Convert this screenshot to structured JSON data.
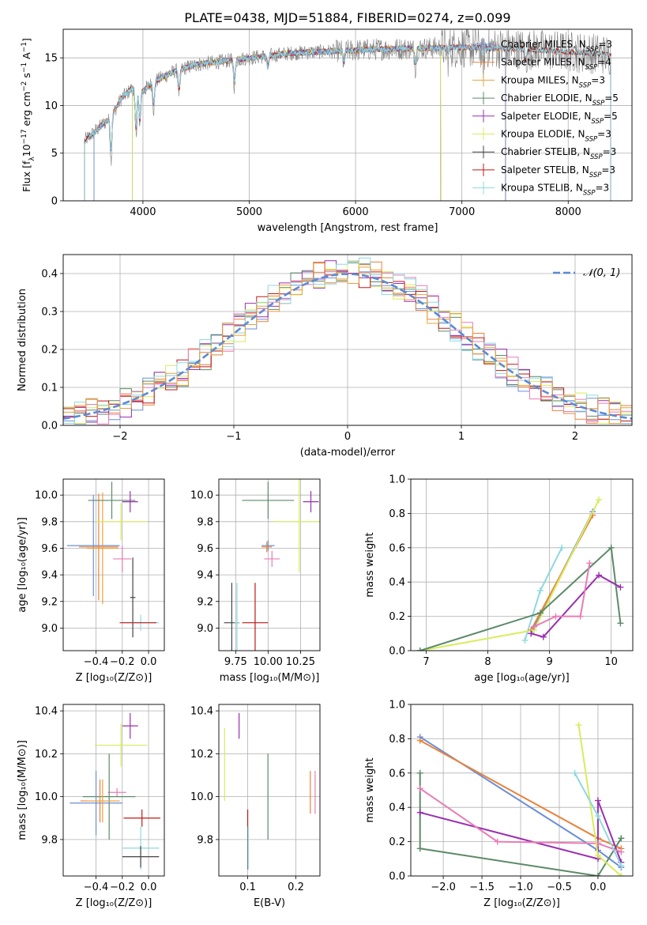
{
  "title": "PLATE=0438, MJD=51884, FIBERID=0274, z=0.099",
  "colors": {
    "miles_chabrier": "#6c8ed6",
    "miles_salpeter": "#e8823c",
    "miles_kroupa": "#e8a23c",
    "elodie_chabrier": "#5c8a68",
    "elodie_salpeter": "#9a2fb0",
    "elodie_kroupa": "#d7ec5a",
    "stelib_chabrier": "#444444",
    "stelib_salpeter": "#c01818",
    "stelib_kroupa": "#8ed8df",
    "spectrum": "#808080",
    "gauss": "#5b8ad6",
    "pink": "#e87db5"
  },
  "legend": [
    {
      "key": "miles_chabrier",
      "label": "Chabrier MILES, N",
      "sub": "SSP",
      "tail": "=3"
    },
    {
      "key": "miles_salpeter",
      "label": "Salpeter MILES, N",
      "sub": "SSP",
      "tail": "=4"
    },
    {
      "key": "miles_kroupa",
      "label": "Kroupa MILES, N",
      "sub": "SSP",
      "tail": "=3"
    },
    {
      "key": "elodie_chabrier",
      "label": "Chabrier ELODIE, N",
      "sub": "SSP",
      "tail": "=5"
    },
    {
      "key": "elodie_salpeter",
      "label": "Salpeter ELODIE, N",
      "sub": "SSP",
      "tail": "=5"
    },
    {
      "key": "elodie_kroupa",
      "label": "Kroupa ELODIE, N",
      "sub": "SSP",
      "tail": "=3"
    },
    {
      "key": "stelib_chabrier",
      "label": "Chabrier STELIB, N",
      "sub": "SSP",
      "tail": "=3"
    },
    {
      "key": "stelib_salpeter",
      "label": "Salpeter STELIB, N",
      "sub": "SSP",
      "tail": "=3"
    },
    {
      "key": "stelib_kroupa",
      "label": "Kroupa STELIB, N",
      "sub": "SSP",
      "tail": "=3"
    }
  ],
  "chart_data": [
    {
      "id": "spectrum",
      "type": "line",
      "xlabel": "wavelength [Angstrom, rest frame]",
      "ylabel": "Flux [f",
      "ylabel_parts": [
        "Flux [f",
        "λ",
        "10",
        "−17",
        " erg cm",
        "−2",
        " s",
        "−1",
        " A",
        "−1",
        "]"
      ],
      "xlim": [
        3250,
        8600
      ],
      "ylim": [
        0,
        18
      ],
      "xticks": [
        4000,
        5000,
        6000,
        7000,
        8000
      ],
      "yticks": [
        0,
        5,
        10,
        15
      ],
      "anchors": [
        [
          3450,
          6.3
        ],
        [
          3600,
          7.8
        ],
        [
          3700,
          8.8
        ],
        [
          3800,
          10.8
        ],
        [
          3900,
          11.8
        ],
        [
          4000,
          11.5
        ],
        [
          4100,
          12.5
        ],
        [
          4300,
          13.6
        ],
        [
          4500,
          14.3
        ],
        [
          4800,
          14.7
        ],
        [
          5000,
          15.0
        ],
        [
          5400,
          15.5
        ],
        [
          5800,
          15.7
        ],
        [
          6200,
          15.9
        ],
        [
          6600,
          16.0
        ],
        [
          7000,
          16.1
        ],
        [
          7400,
          16.0
        ],
        [
          7800,
          15.8
        ],
        [
          8200,
          15.5
        ],
        [
          8400,
          15.3
        ]
      ],
      "dips": [
        [
          3700,
          4.5
        ],
        [
          3935,
          5.0
        ],
        [
          3970,
          4.0
        ],
        [
          4102,
          3.0
        ],
        [
          4340,
          2.5
        ],
        [
          4861,
          3.0
        ],
        [
          5175,
          1.5
        ],
        [
          5890,
          1.5
        ],
        [
          6563,
          2.0
        ],
        [
          6867,
          1.0
        ],
        [
          7200,
          2.0
        ],
        [
          7600,
          1.5
        ]
      ]
    },
    {
      "id": "residuals",
      "type": "histogram",
      "xlabel": "(data-model)/error",
      "ylabel": "Normed distribution",
      "xlim": [
        -2.5,
        2.5
      ],
      "ylim": [
        0,
        0.45
      ],
      "xticks": [
        -2,
        -1,
        0,
        1,
        2
      ],
      "yticks": [
        0.0,
        0.1,
        0.2,
        0.3,
        0.4
      ],
      "bin_width": 0.1,
      "gauss_label": "𝒩(0, 1)"
    },
    {
      "id": "age_vs_Z",
      "type": "errorbar",
      "xlabel": "Z [log₁₀(Z/Z⊙)]",
      "ylabel": "age  [log₁₀(age/yr)]",
      "xlim": [
        -0.65,
        0.12
      ],
      "ylim": [
        8.83,
        10.12
      ],
      "xticks": [
        -0.4,
        -0.2,
        0.0
      ],
      "yticks": [
        9.0,
        9.2,
        9.4,
        9.6,
        9.8,
        10.0
      ],
      "points": [
        {
          "c": "miles_chabrier",
          "x": -0.42,
          "xe": 0.2,
          "y": 9.62,
          "ye": 0.38
        },
        {
          "c": "miles_salpeter",
          "x": -0.38,
          "xe": 0.15,
          "y": 9.61,
          "ye": 0.4
        },
        {
          "c": "miles_kroupa",
          "x": -0.35,
          "xe": 0.12,
          "y": 9.6,
          "ye": 0.42
        },
        {
          "c": "elodie_chabrier",
          "x": -0.28,
          "xe": 0.18,
          "y": 9.96,
          "ye": 0.14
        },
        {
          "c": "elodie_salpeter",
          "x": -0.14,
          "xe": 0.06,
          "y": 9.95,
          "ye": 0.08
        },
        {
          "c": "elodie_kroupa",
          "x": -0.21,
          "xe": 0.2,
          "y": 9.8,
          "ye": 0.14
        },
        {
          "c": "pink",
          "x": -0.2,
          "xe": 0.07,
          "y": 9.52,
          "ye": 0.1
        },
        {
          "c": "stelib_chabrier",
          "x": -0.12,
          "xe": 0.02,
          "y": 9.23,
          "ye": 0.3
        },
        {
          "c": "stelib_kroupa",
          "x": -0.06,
          "xe": 0.14,
          "y": 9.04,
          "ye": 0.06
        },
        {
          "c": "stelib_salpeter",
          "x": -0.08,
          "xe": 0.14,
          "y": 9.04,
          "ye": 0.0
        }
      ]
    },
    {
      "id": "age_vs_mass",
      "type": "errorbar",
      "xlabel": "mass [log₁₀(M/M⊙)]",
      "ylabel": "",
      "xlim": [
        9.62,
        10.4
      ],
      "ylim": [
        8.83,
        10.12
      ],
      "xticks": [
        9.75,
        10.0,
        10.25
      ],
      "yticks": [
        9.0,
        9.2,
        9.4,
        9.6,
        9.8,
        10.0
      ],
      "points": [
        {
          "c": "elodie_chabrier",
          "x": 10.0,
          "xe": 0.2,
          "y": 9.96,
          "ye": 0.14
        },
        {
          "c": "elodie_salpeter",
          "x": 10.33,
          "xe": 0.06,
          "y": 9.95,
          "ye": 0.08
        },
        {
          "c": "elodie_kroupa",
          "x": 10.24,
          "xe": 0.2,
          "y": 9.8,
          "ye": 0.38
        },
        {
          "c": "miles_chabrier",
          "x": 10.0,
          "xe": 0.05,
          "y": 9.62,
          "ye": 0.04
        },
        {
          "c": "miles_salpeter",
          "x": 9.99,
          "xe": 0.04,
          "y": 9.61,
          "ye": 0.04
        },
        {
          "c": "pink",
          "x": 10.03,
          "xe": 0.06,
          "y": 9.52,
          "ye": 0.06
        },
        {
          "c": "stelib_chabrier",
          "x": 9.72,
          "xe": 0.06,
          "y": 9.04,
          "ye": 0.3
        },
        {
          "c": "stelib_kroupa",
          "x": 9.76,
          "xe": 0.02,
          "y": 9.04,
          "ye": 0.3
        },
        {
          "c": "stelib_salpeter",
          "x": 9.9,
          "xe": 0.1,
          "y": 9.04,
          "ye": 0.3
        }
      ]
    },
    {
      "id": "weight_vs_age",
      "type": "line",
      "xlabel": "age  [log₁₀(age/yr)]",
      "ylabel": "mass weight",
      "xlim": [
        6.75,
        10.35
      ],
      "ylim": [
        0,
        1
      ],
      "xticks": [
        7,
        8,
        9,
        10
      ],
      "yticks": [
        0.0,
        0.2,
        0.4,
        0.6,
        0.8,
        1.0
      ],
      "series": [
        {
          "c": "stelib_kroupa",
          "x": [
            8.6,
            8.85,
            9.2
          ],
          "y": [
            0.06,
            0.35,
            0.6
          ]
        },
        {
          "c": "miles_chabrier",
          "x": [
            8.7,
            9.7
          ],
          "y": [
            0.1,
            0.81
          ]
        },
        {
          "c": "miles_salpeter",
          "x": [
            8.7,
            9.7
          ],
          "y": [
            0.12,
            0.79
          ]
        },
        {
          "c": "elodie_kroupa",
          "x": [
            6.9,
            8.75,
            9.8
          ],
          "y": [
            0.0,
            0.12,
            0.88
          ]
        },
        {
          "c": "elodie_chabrier",
          "x": [
            6.9,
            8.85,
            10.0,
            10.15
          ],
          "y": [
            0.0,
            0.22,
            0.6,
            0.16
          ]
        },
        {
          "c": "elodie_salpeter",
          "x": [
            8.7,
            8.9,
            9.8,
            10.15
          ],
          "y": [
            0.1,
            0.08,
            0.44,
            0.37
          ]
        },
        {
          "c": "pink",
          "x": [
            8.75,
            9.1,
            9.5,
            9.65
          ],
          "y": [
            0.14,
            0.2,
            0.2,
            0.51
          ]
        }
      ]
    },
    {
      "id": "mass_vs_Z",
      "type": "errorbar",
      "xlabel": "Z [log₁₀(Z/Z⊙)]",
      "ylabel": "mass [log₁₀(M/M⊙)]",
      "xlim": [
        -0.65,
        0.12
      ],
      "ylim": [
        9.63,
        10.43
      ],
      "xticks": [
        -0.4,
        -0.2,
        0.0
      ],
      "yticks": [
        9.8,
        10.0,
        10.2,
        10.4
      ],
      "points": [
        {
          "c": "elodie_salpeter",
          "x": -0.14,
          "xe": 0.06,
          "y": 10.33,
          "ye": 0.06
        },
        {
          "c": "elodie_kroupa",
          "x": -0.21,
          "xe": 0.2,
          "y": 10.24,
          "ye": 0.1
        },
        {
          "c": "pink",
          "x": -0.24,
          "xe": 0.07,
          "y": 10.02,
          "ye": 0.02
        },
        {
          "c": "elodie_chabrier",
          "x": -0.3,
          "xe": 0.2,
          "y": 10.0,
          "ye": 0.2
        },
        {
          "c": "miles_chabrier",
          "x": -0.4,
          "xe": 0.2,
          "y": 9.97,
          "ye": 0.15
        },
        {
          "c": "miles_salpeter",
          "x": -0.37,
          "xe": 0.15,
          "y": 9.98,
          "ye": 0.1
        },
        {
          "c": "miles_kroupa",
          "x": -0.35,
          "xe": 0.12,
          "y": 9.98,
          "ye": 0.1
        },
        {
          "c": "stelib_salpeter",
          "x": -0.05,
          "xe": 0.14,
          "y": 9.9,
          "ye": 0.04
        },
        {
          "c": "stelib_kroupa",
          "x": -0.06,
          "xe": 0.14,
          "y": 9.76,
          "ye": 0.1
        },
        {
          "c": "stelib_chabrier",
          "x": -0.06,
          "xe": 0.14,
          "y": 9.72,
          "ye": 0.05
        }
      ]
    },
    {
      "id": "mass_vs_ebv",
      "type": "errorbar",
      "xlabel": "E(B-V)",
      "ylabel": "",
      "xlim": [
        0.04,
        0.25
      ],
      "ylim": [
        9.63,
        10.43
      ],
      "xticks": [
        0.1,
        0.2
      ],
      "yticks": [
        9.8,
        10.0,
        10.2,
        10.4
      ],
      "points": [
        {
          "c": "elodie_kroupa",
          "x": 0.052,
          "xe": 0,
          "y": 10.15,
          "ye": 0.17
        },
        {
          "c": "elodie_salpeter",
          "x": 0.082,
          "xe": 0,
          "y": 10.33,
          "ye": 0.06
        },
        {
          "c": "stelib_salpeter",
          "x": 0.1,
          "xe": 0,
          "y": 9.9,
          "ye": 0.04
        },
        {
          "c": "stelib_chabrier",
          "x": 0.1,
          "xe": 0,
          "y": 9.76,
          "ye": 0.1
        },
        {
          "c": "stelib_kroupa",
          "x": 0.101,
          "xe": 0,
          "y": 9.76,
          "ye": 0.1
        },
        {
          "c": "elodie_chabrier",
          "x": 0.142,
          "xe": 0,
          "y": 10.0,
          "ye": 0.2
        },
        {
          "c": "miles_salpeter",
          "x": 0.23,
          "xe": 0,
          "y": 10.02,
          "ye": 0.1
        },
        {
          "c": "pink",
          "x": 0.24,
          "xe": 0,
          "y": 10.02,
          "ye": 0.1
        }
      ]
    },
    {
      "id": "weight_vs_Z",
      "type": "line",
      "xlabel": "Z [log₁₀(Z/Z⊙)]",
      "ylabel": "mass weight",
      "xlim": [
        -2.42,
        0.45
      ],
      "ylim": [
        0,
        1
      ],
      "xticks": [
        -2.0,
        -1.5,
        -1.0,
        -0.5,
        0.0
      ],
      "yticks": [
        0.0,
        0.2,
        0.4,
        0.6,
        0.8,
        1.0
      ],
      "series": [
        {
          "c": "miles_chabrier",
          "x": [
            -2.3,
            0.0,
            0.3
          ],
          "y": [
            0.81,
            0.15,
            0.05
          ]
        },
        {
          "c": "miles_salpeter",
          "x": [
            -2.3,
            0.0,
            0.3
          ],
          "y": [
            0.79,
            0.22,
            0.16
          ]
        },
        {
          "c": "elodie_chabrier",
          "x": [
            -2.3,
            -2.3,
            0.0,
            0.3
          ],
          "y": [
            0.6,
            0.16,
            0.0,
            0.22
          ]
        },
        {
          "c": "elodie_salpeter",
          "x": [
            -2.3,
            0.0,
            0.0,
            0.3
          ],
          "y": [
            0.37,
            0.1,
            0.44,
            0.08
          ]
        },
        {
          "c": "pink",
          "x": [
            -2.3,
            -1.3,
            0.0,
            0.3
          ],
          "y": [
            0.51,
            0.2,
            0.19,
            0.14
          ]
        },
        {
          "c": "elodie_kroupa",
          "x": [
            -0.25,
            0.0,
            0.3
          ],
          "y": [
            0.88,
            0.12,
            0.0
          ]
        },
        {
          "c": "stelib_kroupa",
          "x": [
            -0.3,
            0.0,
            0.3
          ],
          "y": [
            0.6,
            0.35,
            0.06
          ]
        }
      ]
    }
  ]
}
